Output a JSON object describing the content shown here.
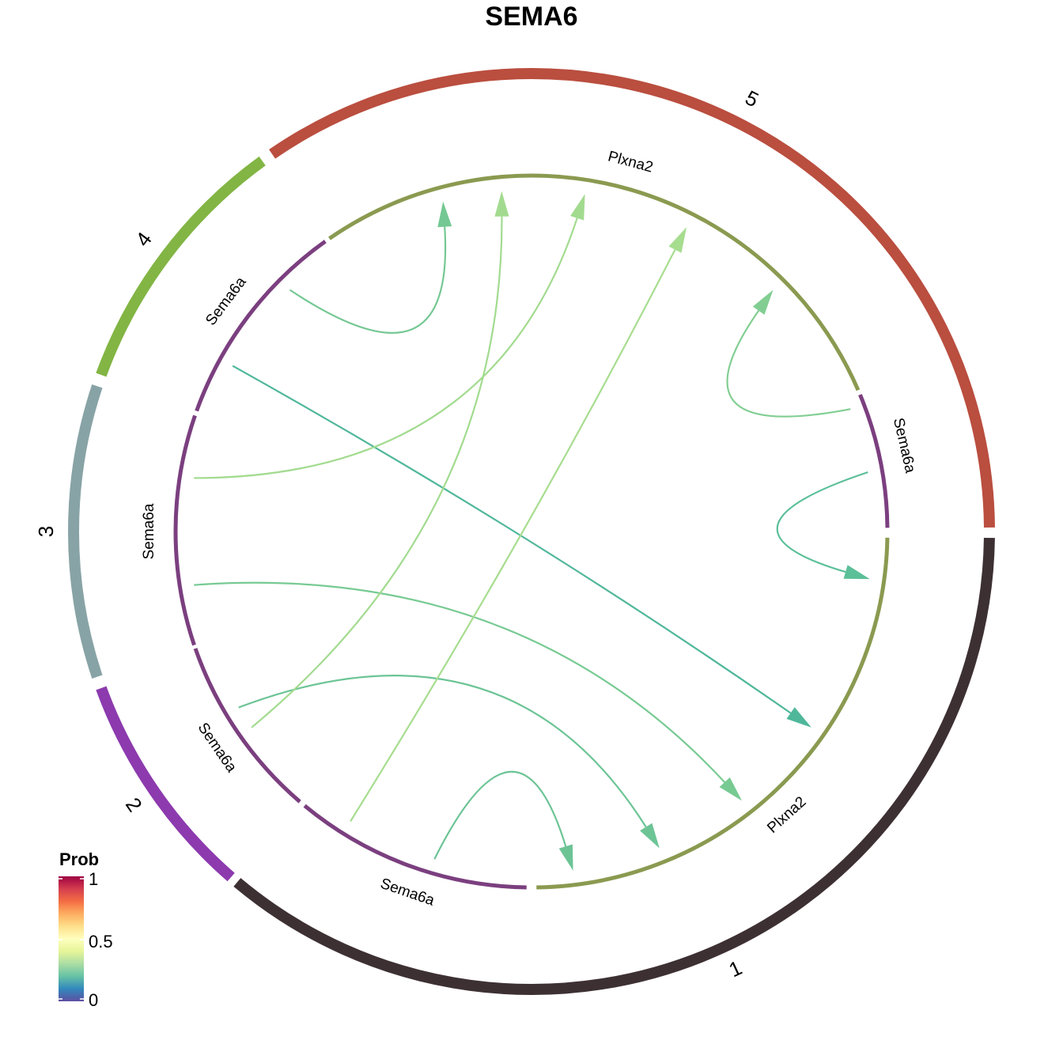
{
  "title": "SEMA6",
  "groups": [
    {
      "id": "1",
      "label": "1",
      "color": "#3D3033"
    },
    {
      "id": "2",
      "label": "2",
      "color": "#8C3AAE"
    },
    {
      "id": "3",
      "label": "3",
      "color": "#88A3A6"
    },
    {
      "id": "4",
      "label": "4",
      "color": "#82B544"
    },
    {
      "id": "5",
      "label": "5",
      "color": "#BA4E3F"
    }
  ],
  "gene_sectors": [
    {
      "id": "g1",
      "label": "Plxna2",
      "role": "receptor",
      "group": "1",
      "color": "#8A9A50"
    },
    {
      "id": "g2",
      "label": "Sema6a",
      "role": "ligand",
      "group": "1",
      "color": "#7B3F7F"
    },
    {
      "id": "g3",
      "label": "Sema6a",
      "role": "ligand",
      "group": "2",
      "color": "#7B3F7F"
    },
    {
      "id": "g4",
      "label": "Sema6a",
      "role": "ligand",
      "group": "3",
      "color": "#7B3F7F"
    },
    {
      "id": "g5",
      "label": "Sema6a",
      "role": "ligand",
      "group": "4",
      "color": "#7B3F7F"
    },
    {
      "id": "g6",
      "label": "Plxna2",
      "role": "receptor",
      "group": "5",
      "color": "#8A9A50"
    },
    {
      "id": "g7",
      "label": "Sema6a",
      "role": "ligand",
      "group": "5",
      "color": "#7B3F7F"
    }
  ],
  "links": [
    {
      "source": "4",
      "target": "1",
      "color": "#4FB79A"
    },
    {
      "source": "5",
      "target": "1",
      "color": "#5BBF98"
    },
    {
      "source": "3",
      "target": "1",
      "color": "#77CA92"
    },
    {
      "source": "2",
      "target": "1",
      "color": "#6CC495"
    },
    {
      "source": "1",
      "target": "1",
      "color": "#6CC495"
    },
    {
      "source": "3",
      "target": "5",
      "color": "#A2DB8F"
    },
    {
      "source": "2",
      "target": "5",
      "color": "#A2DB8F"
    },
    {
      "source": "1",
      "target": "5",
      "color": "#A7DD8F"
    },
    {
      "source": "4",
      "target": "5",
      "color": "#74C893"
    },
    {
      "source": "5",
      "target": "5",
      "color": "#82CE92"
    }
  ],
  "legend": {
    "title": "Prob",
    "ticks": [
      "1",
      "0.5",
      "0"
    ],
    "scale": "Spectral",
    "range": [
      0,
      1
    ]
  }
}
